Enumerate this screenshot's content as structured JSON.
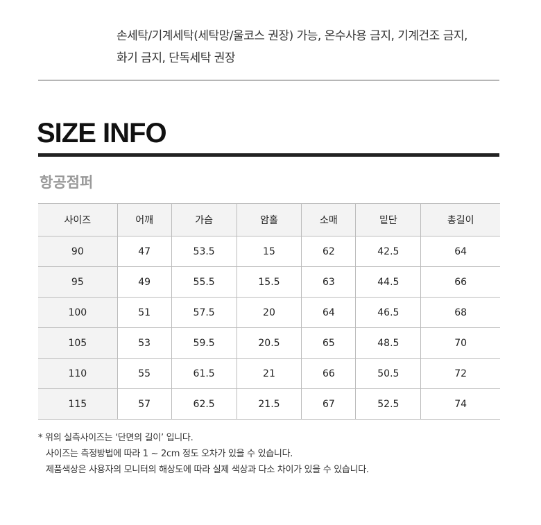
{
  "care": {
    "line1": "손세탁/기계세탁(세탁망/울코스 권장) 가능, 온수사용 금지, 기계건조 금지,",
    "line2": "화기 금지, 단독세탁 권장"
  },
  "section_title": "SIZE INFO",
  "product_name": "항공점퍼",
  "table": {
    "headers": [
      "사이즈",
      "어깨",
      "가슴",
      "암홀",
      "소매",
      "밑단",
      "총길이"
    ],
    "rows": [
      [
        "90",
        "47",
        "53.5",
        "15",
        "62",
        "42.5",
        "64"
      ],
      [
        "95",
        "49",
        "55.5",
        "15.5",
        "63",
        "44.5",
        "66"
      ],
      [
        "100",
        "51",
        "57.5",
        "20",
        "64",
        "46.5",
        "68"
      ],
      [
        "105",
        "53",
        "59.5",
        "20.5",
        "65",
        "48.5",
        "70"
      ],
      [
        "110",
        "55",
        "61.5",
        "21",
        "66",
        "50.5",
        "72"
      ],
      [
        "115",
        "57",
        "62.5",
        "21.5",
        "67",
        "52.5",
        "74"
      ]
    ]
  },
  "notes": [
    "* 위의 실측사이즈는 ‘단면의 길이’ 입니다.",
    "사이즈는 측정방법에 따라 1 ~ 2cm 정도 오차가 있을 수 있습니다.",
    "제품색상은 사용자의 모니터의 해상도에 따라 실제 색상과 다소 차이가 있을 수 있습니다."
  ]
}
